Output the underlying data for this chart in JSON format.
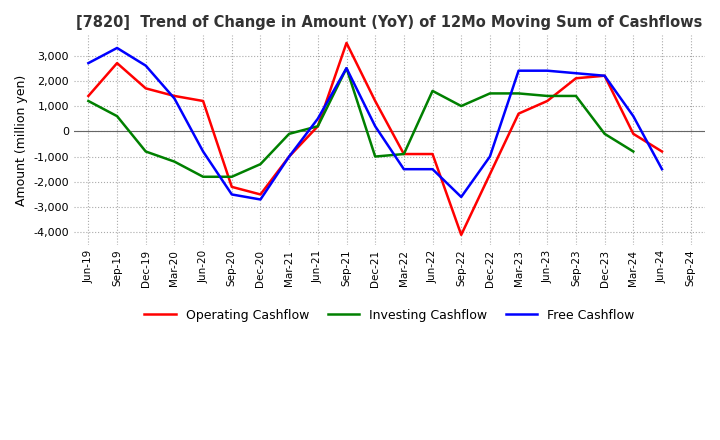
{
  "title": "[7820]  Trend of Change in Amount (YoY) of 12Mo Moving Sum of Cashflows",
  "ylabel": "Amount (million yen)",
  "ylim": [
    -4500,
    3800
  ],
  "yticks": [
    -4000,
    -3000,
    -2000,
    -1000,
    0,
    1000,
    2000,
    3000
  ],
  "background_color": "#ffffff",
  "grid_color": "#aaaaaa",
  "labels": [
    "Jun-19",
    "Sep-19",
    "Dec-19",
    "Mar-20",
    "Jun-20",
    "Sep-20",
    "Dec-20",
    "Mar-21",
    "Jun-21",
    "Sep-21",
    "Dec-21",
    "Mar-22",
    "Jun-22",
    "Sep-22",
    "Dec-22",
    "Mar-23",
    "Jun-23",
    "Sep-23",
    "Dec-23",
    "Mar-24",
    "Jun-24",
    "Sep-24"
  ],
  "operating": [
    1400,
    2700,
    1700,
    1400,
    1200,
    -2200,
    -2500,
    -1000,
    200,
    3500,
    1200,
    -900,
    -900,
    -4100,
    -1700,
    700,
    1200,
    2100,
    2200,
    -100,
    -800,
    null
  ],
  "investing": [
    1200,
    600,
    -800,
    -1200,
    -1800,
    -1800,
    -1300,
    -100,
    200,
    2500,
    -1000,
    -900,
    1600,
    1000,
    1500,
    1500,
    1400,
    1400,
    -100,
    -800,
    null,
    null
  ],
  "free": [
    2700,
    3300,
    2600,
    1300,
    -800,
    -2500,
    -2700,
    -1000,
    500,
    2500,
    200,
    -1500,
    -1500,
    -2600,
    -1000,
    2400,
    2400,
    2300,
    2200,
    600,
    -1500,
    null
  ],
  "operating_color": "#ff0000",
  "investing_color": "#008000",
  "free_color": "#0000ff",
  "line_width": 1.8
}
